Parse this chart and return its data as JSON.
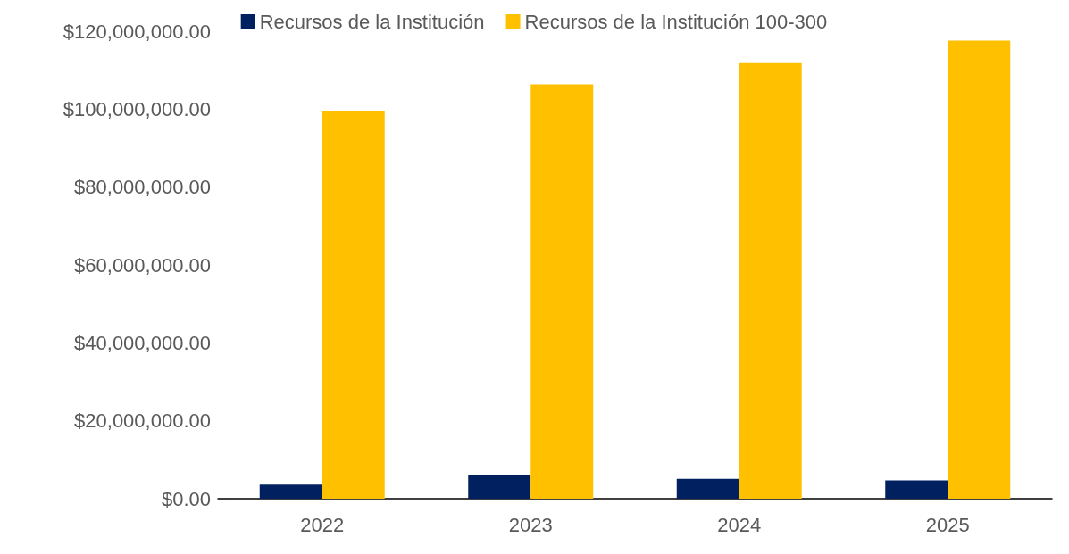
{
  "chart_data": {
    "type": "bar",
    "categories": [
      "2022",
      "2023",
      "2024",
      "2025"
    ],
    "series": [
      {
        "name": "Recursos de la Institución",
        "color": "#002060",
        "values": [
          3600000,
          6000000,
          5100000,
          4700000
        ]
      },
      {
        "name": "Recursos de la Institución 100-300",
        "color": "#ffc000",
        "values": [
          99600000,
          106400000,
          111800000,
          117600000
        ]
      }
    ],
    "ylim": [
      0,
      120000000
    ],
    "yticks": [
      {
        "value": 0,
        "label": "$0.00"
      },
      {
        "value": 20000000,
        "label": "$20,000,000.00"
      },
      {
        "value": 40000000,
        "label": "$40,000,000.00"
      },
      {
        "value": 60000000,
        "label": "$60,000,000.00"
      },
      {
        "value": 80000000,
        "label": "$80,000,000.00"
      },
      {
        "value": 100000000,
        "label": "$100,000,000.00"
      },
      {
        "value": 120000000,
        "label": "$120,000,000.00"
      }
    ],
    "grid": false,
    "legend": "top"
  }
}
